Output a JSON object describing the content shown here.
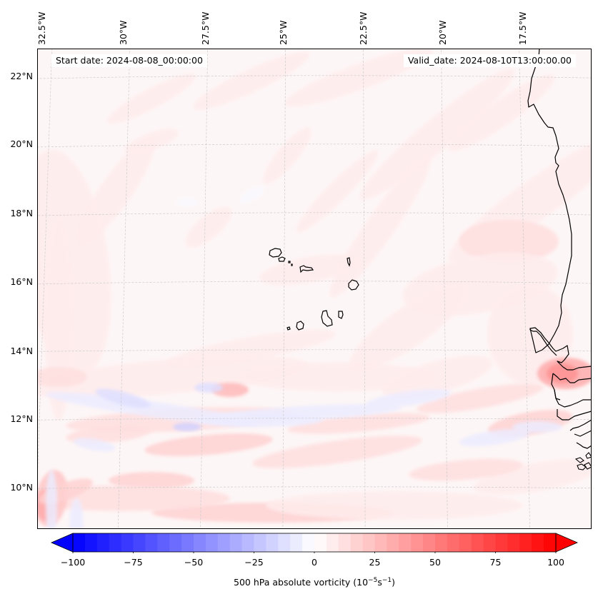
{
  "map": {
    "projection": "lambert-conformal",
    "extent": {
      "lon_min": -32.8,
      "lon_max": -14.8,
      "lat_min": 8.8,
      "lat_max": 22.6
    },
    "longitude_labels": [
      "32.5°W",
      "30°W",
      "27.5°W",
      "25°W",
      "22.5°W",
      "20°W",
      "17.5°W"
    ],
    "longitude_values": [
      -32.5,
      -30,
      -27.5,
      -25,
      -22.5,
      -20,
      -17.5
    ],
    "latitude_labels": [
      "22°N",
      "20°N",
      "18°N",
      "16°N",
      "14°N",
      "12°N",
      "10°N"
    ],
    "latitude_values": [
      22,
      20,
      18,
      16,
      14,
      12,
      10
    ],
    "start_date": "Start date: 2024-08-08_00:00:00",
    "valid_date": "Valid_date: 2024-08-10T13:00:00.00",
    "field": "500 hPa absolute vorticity",
    "features": [
      "coastline: West Africa (Mauritania, Senegal, Gambia, Guinea-Bissau)",
      "Cape Verde islands"
    ]
  },
  "colorbar": {
    "colormap": "bwr",
    "min": -100,
    "max": 100,
    "step": 5,
    "extend": "both",
    "ticks": [
      -100,
      -75,
      -50,
      -25,
      0,
      25,
      50,
      75,
      100
    ],
    "tick_labels": [
      "−100",
      "−75",
      "−50",
      "−25",
      "0",
      "25",
      "50",
      "75",
      "100"
    ],
    "label_prefix": "500 hPa absolute vorticity (10",
    "label_exp1": "−5",
    "label_mid": "s",
    "label_exp2": "−1",
    "label_suffix": ")",
    "colors": {
      "min": "#0000ff",
      "mid": "#ffffff",
      "max": "#ff0000"
    }
  },
  "vorticity_features": [
    {
      "type": "positive-band",
      "description": "weak positive vorticity streaks NE-SW across northern domain",
      "value": 5
    },
    {
      "type": "positive-max",
      "description": "maximum near Gambia coast ~13.3N 16.5W",
      "value": 30
    },
    {
      "type": "positive-max",
      "description": "local max ~12.8N 27.5W",
      "value": 25
    },
    {
      "type": "positive-max",
      "description": "local max near SW corner ~9.5N 32.5W",
      "value": 25
    },
    {
      "type": "negative-band",
      "description": "weak negative band ~12-13N west of 22W",
      "value": -15
    },
    {
      "type": "positive-band",
      "description": "zonal positive band ~9.5N",
      "value": 15
    }
  ]
}
